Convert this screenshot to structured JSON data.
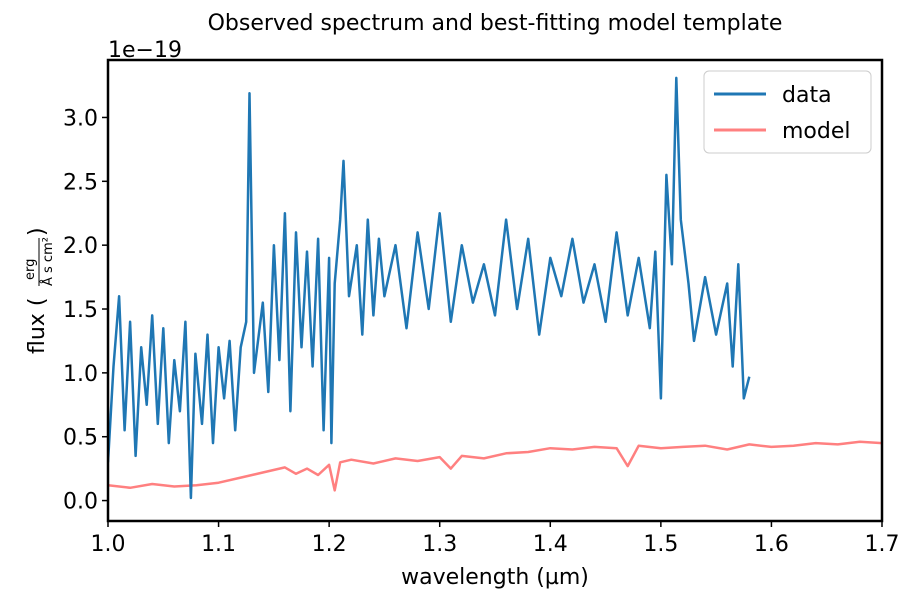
{
  "chart_data": {
    "type": "line",
    "title": "Observed spectrum and best-fitting model template",
    "xlabel": "wavelength (µm)",
    "ylabel": {
      "prefix": "flux (",
      "numerator": "erg",
      "denominator": "Å s cm²",
      "suffix": ")"
    },
    "offset_text": "1e−19",
    "xlim": [
      1.0,
      1.7
    ],
    "ylim": [
      -0.16,
      3.45
    ],
    "xticks": [
      1.0,
      1.1,
      1.2,
      1.3,
      1.4,
      1.5,
      1.6,
      1.7
    ],
    "xtick_labels": [
      "1.0",
      "1.1",
      "1.2",
      "1.3",
      "1.4",
      "1.5",
      "1.6",
      "1.7"
    ],
    "yticks": [
      0.0,
      0.5,
      1.0,
      1.5,
      2.0,
      2.5,
      3.0
    ],
    "ytick_labels": [
      "0.0",
      "0.5",
      "1.0",
      "1.5",
      "2.0",
      "2.5",
      "3.0"
    ],
    "grid": false,
    "legend_position": "top-right",
    "series": [
      {
        "name": "data",
        "color": "#1f77b4",
        "x": [
          1.0,
          1.005,
          1.01,
          1.015,
          1.02,
          1.025,
          1.03,
          1.035,
          1.04,
          1.045,
          1.05,
          1.055,
          1.06,
          1.065,
          1.07,
          1.075,
          1.079,
          1.085,
          1.09,
          1.095,
          1.1,
          1.105,
          1.11,
          1.115,
          1.12,
          1.125,
          1.128,
          1.132,
          1.14,
          1.145,
          1.15,
          1.155,
          1.16,
          1.165,
          1.17,
          1.175,
          1.18,
          1.185,
          1.19,
          1.195,
          1.2,
          1.202,
          1.205,
          1.21,
          1.213,
          1.218,
          1.225,
          1.23,
          1.235,
          1.24,
          1.245,
          1.25,
          1.26,
          1.27,
          1.28,
          1.29,
          1.3,
          1.31,
          1.32,
          1.33,
          1.34,
          1.35,
          1.36,
          1.37,
          1.38,
          1.39,
          1.4,
          1.41,
          1.42,
          1.43,
          1.44,
          1.45,
          1.46,
          1.47,
          1.48,
          1.49,
          1.495,
          1.5,
          1.505,
          1.51,
          1.514,
          1.518,
          1.525,
          1.53,
          1.54,
          1.55,
          1.56,
          1.565,
          1.57,
          1.575,
          1.58
        ],
        "y": [
          0.3,
          1.05,
          1.6,
          0.55,
          1.4,
          0.35,
          1.2,
          0.75,
          1.45,
          0.6,
          1.35,
          0.45,
          1.1,
          0.7,
          1.4,
          0.02,
          1.15,
          0.6,
          1.3,
          0.45,
          1.2,
          0.8,
          1.25,
          0.55,
          1.2,
          1.4,
          3.19,
          1.0,
          1.55,
          0.85,
          2.0,
          1.1,
          2.25,
          0.7,
          2.1,
          1.2,
          1.95,
          1.05,
          2.05,
          0.55,
          1.9,
          0.45,
          1.7,
          2.2,
          2.66,
          1.6,
          2.0,
          1.3,
          2.2,
          1.45,
          2.05,
          1.6,
          2.0,
          1.35,
          2.1,
          1.5,
          2.25,
          1.4,
          2.0,
          1.55,
          1.85,
          1.45,
          2.2,
          1.5,
          2.05,
          1.3,
          1.9,
          1.6,
          2.05,
          1.55,
          1.85,
          1.4,
          2.1,
          1.45,
          1.9,
          1.35,
          1.95,
          0.8,
          2.55,
          1.85,
          3.31,
          2.2,
          1.7,
          1.25,
          1.75,
          1.3,
          1.7,
          1.05,
          1.85,
          0.8,
          0.97
        ]
      },
      {
        "name": "model",
        "color": "#ff8080",
        "x": [
          1.0,
          1.02,
          1.04,
          1.06,
          1.08,
          1.1,
          1.12,
          1.14,
          1.16,
          1.17,
          1.18,
          1.19,
          1.2,
          1.205,
          1.21,
          1.22,
          1.24,
          1.26,
          1.28,
          1.3,
          1.31,
          1.32,
          1.34,
          1.36,
          1.38,
          1.4,
          1.42,
          1.44,
          1.46,
          1.47,
          1.48,
          1.5,
          1.52,
          1.54,
          1.56,
          1.58,
          1.6,
          1.62,
          1.64,
          1.66,
          1.68,
          1.7
        ],
        "y": [
          0.12,
          0.1,
          0.13,
          0.11,
          0.12,
          0.14,
          0.18,
          0.22,
          0.26,
          0.21,
          0.25,
          0.2,
          0.28,
          0.08,
          0.3,
          0.32,
          0.29,
          0.33,
          0.31,
          0.34,
          0.25,
          0.35,
          0.33,
          0.37,
          0.38,
          0.41,
          0.4,
          0.42,
          0.41,
          0.27,
          0.43,
          0.41,
          0.42,
          0.43,
          0.4,
          0.44,
          0.42,
          0.43,
          0.45,
          0.44,
          0.46,
          0.45
        ]
      }
    ]
  }
}
